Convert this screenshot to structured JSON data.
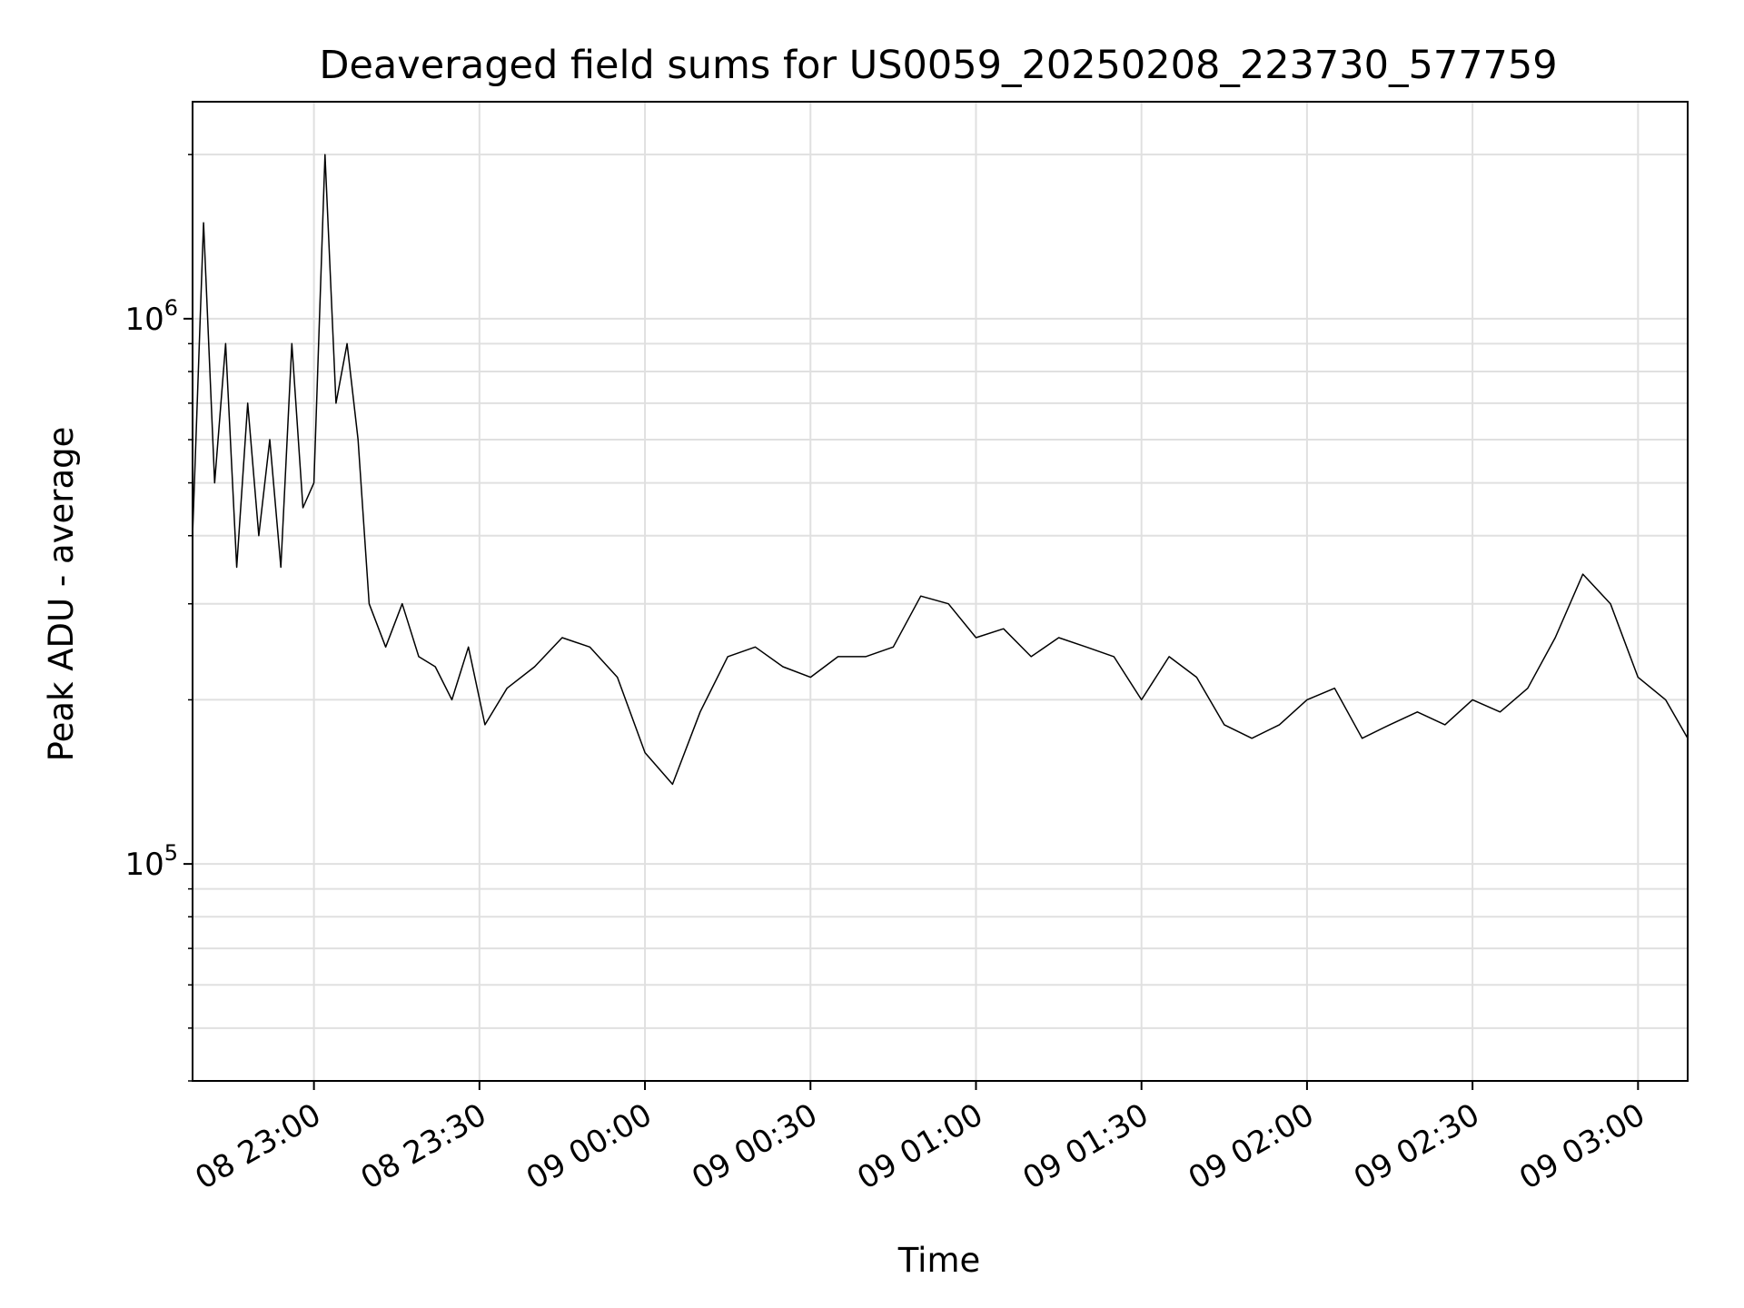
{
  "chart_data": {
    "type": "line",
    "title": "Deaveraged field sums for US0059_20250208_223730_577759",
    "xlabel": "Time",
    "ylabel": "Peak ADU - average",
    "x_scale": "time",
    "y_scale": "log",
    "xlim": [
      "2025-02-08T22:38:00",
      "2025-02-09T03:09:00"
    ],
    "ylim": [
      40000,
      2500000
    ],
    "grid": true,
    "legend": "none",
    "line_color": "#000000",
    "x_ticks": [
      {
        "value": "2025-02-08T23:00:00",
        "label": "08 23:00"
      },
      {
        "value": "2025-02-08T23:30:00",
        "label": "08 23:30"
      },
      {
        "value": "2025-02-09T00:00:00",
        "label": "09 00:00"
      },
      {
        "value": "2025-02-09T00:30:00",
        "label": "09 00:30"
      },
      {
        "value": "2025-02-09T01:00:00",
        "label": "09 01:00"
      },
      {
        "value": "2025-02-09T01:30:00",
        "label": "09 01:30"
      },
      {
        "value": "2025-02-09T02:00:00",
        "label": "09 02:00"
      },
      {
        "value": "2025-02-09T02:30:00",
        "label": "09 02:30"
      },
      {
        "value": "2025-02-09T03:00:00",
        "label": "09 03:00"
      }
    ],
    "y_ticks": [
      {
        "value": 100000,
        "base": "10",
        "exp": "5"
      },
      {
        "value": 1000000,
        "base": "10",
        "exp": "6"
      }
    ],
    "series": [
      {
        "x": [
          "2025-02-08T22:38:00",
          "2025-02-08T22:40:00",
          "2025-02-08T22:42:00",
          "2025-02-08T22:44:00",
          "2025-02-08T22:46:00",
          "2025-02-08T22:48:00",
          "2025-02-08T22:50:00",
          "2025-02-08T22:52:00",
          "2025-02-08T22:54:00",
          "2025-02-08T22:56:00",
          "2025-02-08T22:58:00",
          "2025-02-08T23:00:00",
          "2025-02-08T23:02:00",
          "2025-02-08T23:04:00",
          "2025-02-08T23:06:00",
          "2025-02-08T23:08:00",
          "2025-02-08T23:10:00",
          "2025-02-08T23:13:00",
          "2025-02-08T23:16:00",
          "2025-02-08T23:19:00",
          "2025-02-08T23:22:00",
          "2025-02-08T23:25:00",
          "2025-02-08T23:28:00",
          "2025-02-08T23:31:00",
          "2025-02-08T23:35:00",
          "2025-02-08T23:40:00",
          "2025-02-08T23:45:00",
          "2025-02-08T23:50:00",
          "2025-02-08T23:55:00",
          "2025-02-09T00:00:00",
          "2025-02-09T00:05:00",
          "2025-02-09T00:10:00",
          "2025-02-09T00:15:00",
          "2025-02-09T00:20:00",
          "2025-02-09T00:25:00",
          "2025-02-09T00:30:00",
          "2025-02-09T00:35:00",
          "2025-02-09T00:40:00",
          "2025-02-09T00:45:00",
          "2025-02-09T00:50:00",
          "2025-02-09T00:55:00",
          "2025-02-09T01:00:00",
          "2025-02-09T01:05:00",
          "2025-02-09T01:10:00",
          "2025-02-09T01:15:00",
          "2025-02-09T01:20:00",
          "2025-02-09T01:25:00",
          "2025-02-09T01:30:00",
          "2025-02-09T01:35:00",
          "2025-02-09T01:40:00",
          "2025-02-09T01:45:00",
          "2025-02-09T01:50:00",
          "2025-02-09T01:55:00",
          "2025-02-09T02:00:00",
          "2025-02-09T02:05:00",
          "2025-02-09T02:10:00",
          "2025-02-09T02:15:00",
          "2025-02-09T02:20:00",
          "2025-02-09T02:25:00",
          "2025-02-09T02:30:00",
          "2025-02-09T02:35:00",
          "2025-02-09T02:40:00",
          "2025-02-09T02:45:00",
          "2025-02-09T02:50:00",
          "2025-02-09T02:55:00",
          "2025-02-09T03:00:00",
          "2025-02-09T03:05:00",
          "2025-02-09T03:09:00"
        ],
        "values": [
          400000,
          1500000,
          500000,
          900000,
          350000,
          700000,
          400000,
          600000,
          350000,
          900000,
          450000,
          500000,
          2000000,
          700000,
          900000,
          600000,
          300000,
          250000,
          300000,
          240000,
          230000,
          200000,
          250000,
          180000,
          210000,
          230000,
          260000,
          250000,
          220000,
          160000,
          140000,
          190000,
          240000,
          250000,
          230000,
          220000,
          240000,
          240000,
          250000,
          310000,
          300000,
          260000,
          270000,
          240000,
          260000,
          250000,
          240000,
          200000,
          240000,
          220000,
          180000,
          170000,
          180000,
          200000,
          210000,
          170000,
          180000,
          190000,
          180000,
          200000,
          190000,
          210000,
          260000,
          340000,
          300000,
          220000,
          200000,
          170000
        ]
      }
    ]
  }
}
